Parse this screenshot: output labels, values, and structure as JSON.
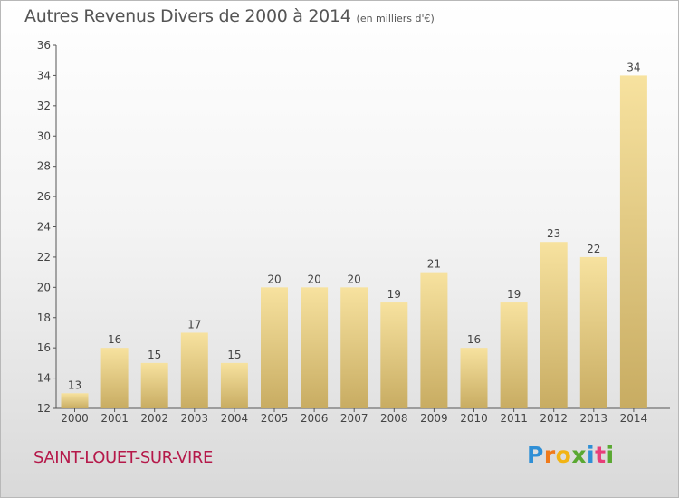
{
  "chart_data": {
    "type": "bar",
    "title": "Autres Revenus Divers de 2000 à 2014",
    "unit_label": "(en milliers d'€)",
    "categories": [
      "2000",
      "2001",
      "2002",
      "2003",
      "2004",
      "2005",
      "2006",
      "2007",
      "2008",
      "2009",
      "2010",
      "2011",
      "2012",
      "2013",
      "2014"
    ],
    "values": [
      13,
      16,
      15,
      17,
      15,
      20,
      20,
      20,
      19,
      21,
      16,
      19,
      23,
      22,
      34
    ],
    "ylim": [
      12,
      36
    ],
    "yticks": [
      12,
      14,
      16,
      18,
      20,
      22,
      24,
      26,
      28,
      30,
      32,
      34,
      36
    ],
    "xlabel": "",
    "ylabel": "",
    "grid": false,
    "bar_color": "#e6c87a"
  },
  "footer": {
    "commune": "SAINT-LOUET-SUR-VIRE",
    "logo_letters": [
      "P",
      "r",
      "o",
      "x",
      "i",
      "t",
      "i"
    ],
    "logo_colors": [
      "#2f8fd6",
      "#f07a1a",
      "#f2b414",
      "#5aa832",
      "#2f8fd6",
      "#e83e7a",
      "#5aa832"
    ]
  }
}
